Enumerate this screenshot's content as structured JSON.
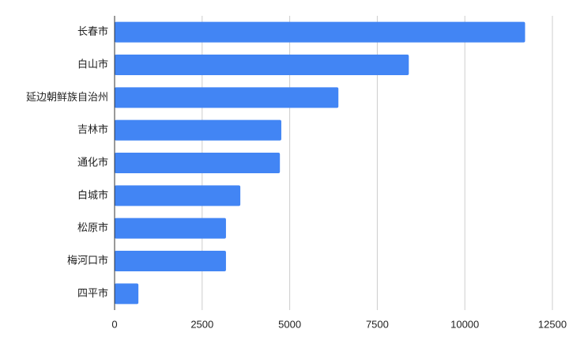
{
  "chart_data": {
    "type": "hbar",
    "categories": [
      "长春市",
      "白山市",
      "延边朝鲜族自治州",
      "吉林市",
      "通化市",
      "白城市",
      "松原市",
      "梅河口市",
      "四平市"
    ],
    "values": [
      11720,
      8400,
      6390,
      4760,
      4720,
      3590,
      3180,
      3180,
      680
    ],
    "color": "#4285f4",
    "xlim": [
      0,
      12500
    ],
    "xticks": [
      0,
      2500,
      5000,
      7500,
      10000,
      12500
    ],
    "grid": true
  }
}
